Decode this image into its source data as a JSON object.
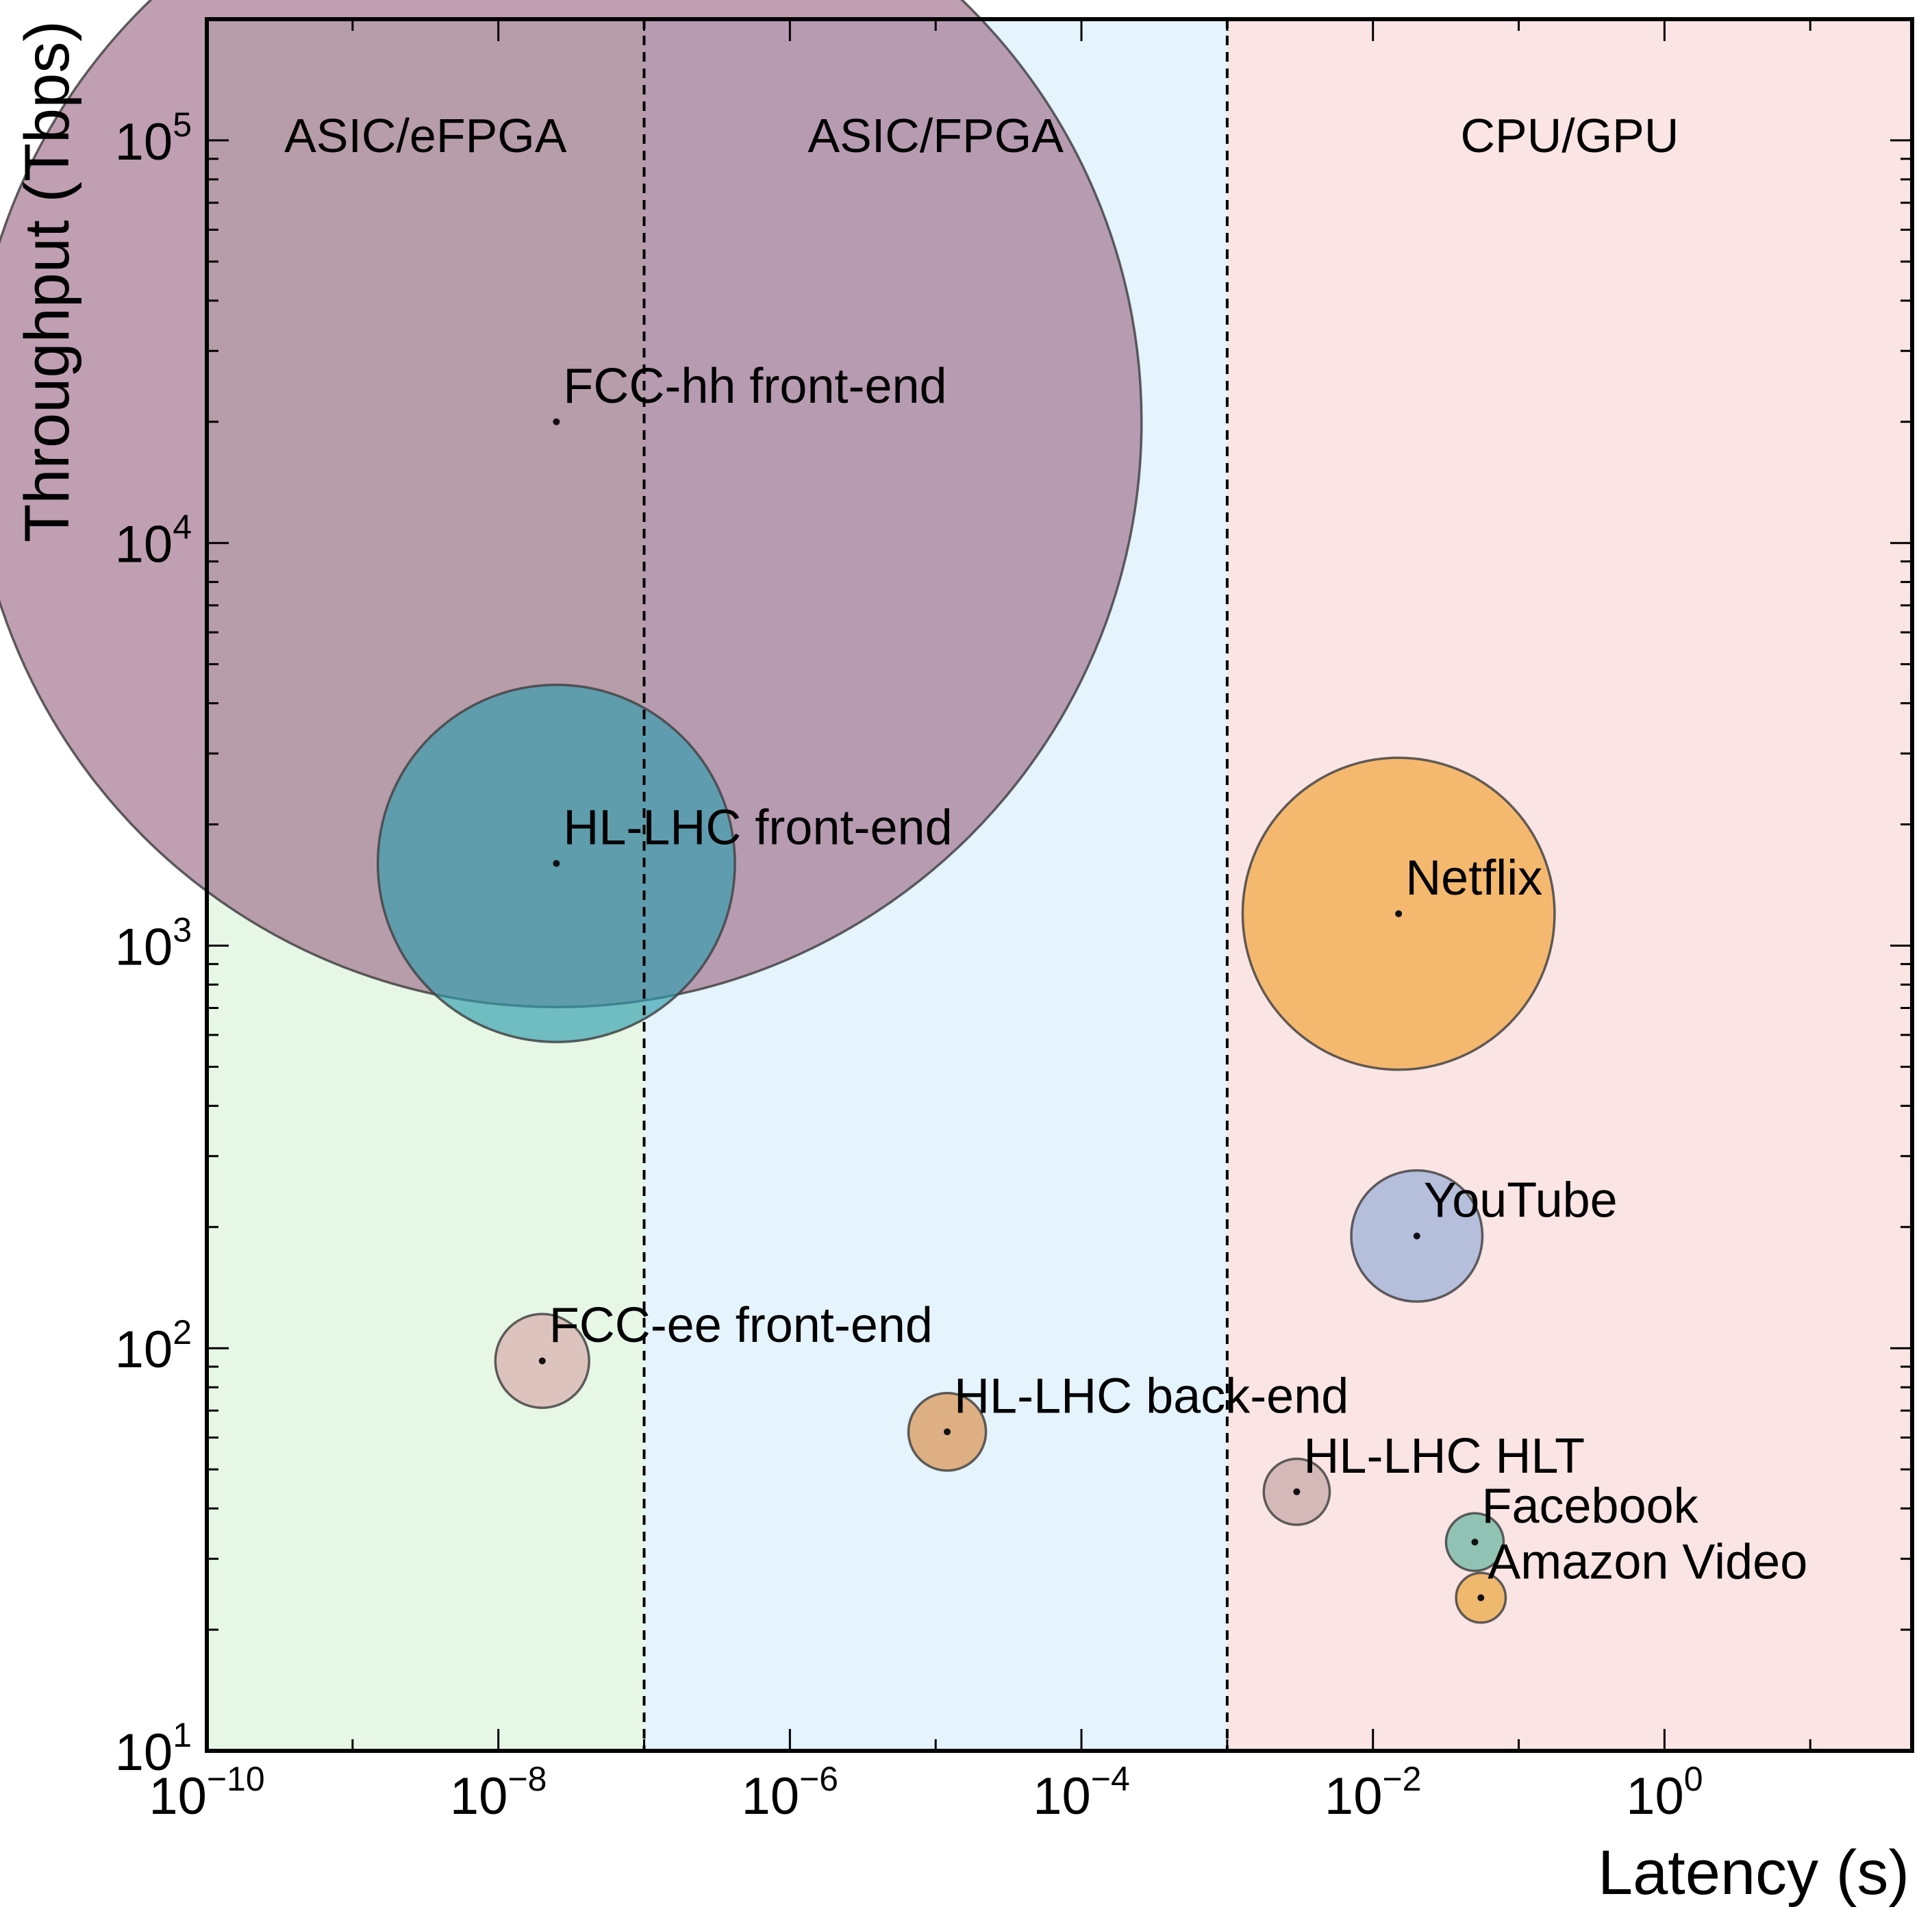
{
  "chart_data": {
    "type": "scatter",
    "title": "",
    "xlabel": "Latency (s)",
    "ylabel": "Throughput (Tbps)",
    "xscale": "log",
    "yscale": "log",
    "xlim": [
      1e-10,
      50
    ],
    "ylim": [
      10,
      200000
    ],
    "x_ticks": [
      {
        "value": 1e-10,
        "base": "10",
        "exp": "−10"
      },
      {
        "value": 1e-08,
        "base": "10",
        "exp": "−8"
      },
      {
        "value": 1e-06,
        "base": "10",
        "exp": "−6"
      },
      {
        "value": 0.0001,
        "base": "10",
        "exp": "−4"
      },
      {
        "value": 0.01,
        "base": "10",
        "exp": "−2"
      },
      {
        "value": 1,
        "base": "10",
        "exp": "0"
      }
    ],
    "y_ticks": [
      {
        "value": 10,
        "base": "10",
        "exp": "1"
      },
      {
        "value": 100,
        "base": "10",
        "exp": "2"
      },
      {
        "value": 1000,
        "base": "10",
        "exp": "3"
      },
      {
        "value": 10000,
        "base": "10",
        "exp": "4"
      },
      {
        "value": 100000,
        "base": "10",
        "exp": "5"
      }
    ],
    "regions": [
      {
        "label": "ASIC/eFPGA",
        "x_range": [
          1e-10,
          1e-07
        ],
        "color": "#e6f7e6"
      },
      {
        "label": "ASIC/FPGA",
        "x_range": [
          1e-07,
          0.001
        ],
        "color": "#e4f3fc"
      },
      {
        "label": "CPU/GPU",
        "x_range": [
          0.001,
          50
        ],
        "color": "#fbe4e4"
      }
    ],
    "boundaries": [
      1e-07,
      0.001
    ],
    "points": [
      {
        "label": "FCC-hh front-end",
        "x": 2.5e-08,
        "y": 20000,
        "color": "#9e6b89"
      },
      {
        "label": "HL-LHC front-end",
        "x": 2.5e-08,
        "y": 1600,
        "color": "#2f9cad"
      },
      {
        "label": "Netflix",
        "x": 0.015,
        "y": 1200,
        "color": "#f0a030"
      },
      {
        "label": "YouTube",
        "x": 0.02,
        "y": 190,
        "color": "#8fa9d6"
      },
      {
        "label": "FCC-ee front-end",
        "x": 2e-08,
        "y": 93,
        "color": "#d9a8a8"
      },
      {
        "label": "HL-LHC back-end",
        "x": 1.2e-05,
        "y": 62,
        "color": "#d88a40"
      },
      {
        "label": "HL-LHC HLT",
        "x": 0.003,
        "y": 44,
        "color": "#c0a0a0"
      },
      {
        "label": "Facebook",
        "x": 0.05,
        "y": 33,
        "color": "#58b09a"
      },
      {
        "label": "Amazon Video",
        "x": 0.055,
        "y": 24,
        "color": "#e8a030"
      }
    ],
    "grid": false,
    "legend": "none"
  }
}
